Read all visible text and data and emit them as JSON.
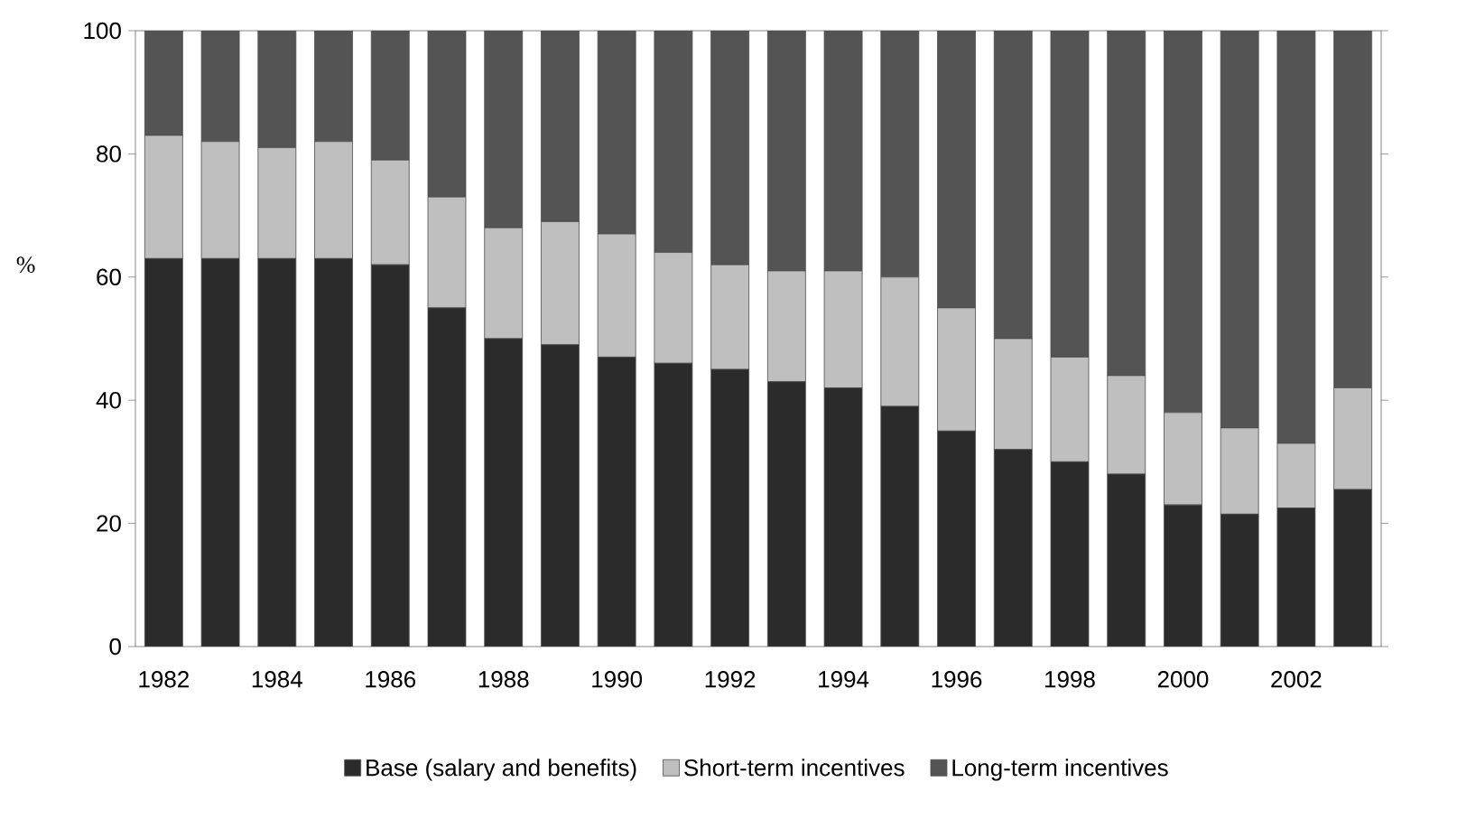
{
  "chart_data": {
    "type": "bar",
    "stacked": true,
    "ylabel": "%",
    "categories": [
      "1982",
      null,
      "1984",
      null,
      "1986",
      null,
      "1988",
      null,
      "1990",
      null,
      "1992",
      null,
      "1994",
      null,
      "1996",
      null,
      "1998",
      null,
      "2000",
      null,
      "2002",
      null
    ],
    "series": [
      {
        "name": "Base (salary and benefits)",
        "color": "#2b2b2b",
        "values": [
          63,
          63,
          63,
          63,
          62,
          55,
          50,
          49,
          47,
          46,
          45,
          43,
          42,
          39,
          35,
          32,
          30,
          28,
          23,
          21.5,
          22.5,
          25.5
        ]
      },
      {
        "name": "Short-term incentives",
        "color": "#bfbfbf",
        "values": [
          20,
          19,
          18,
          19,
          17,
          18,
          18,
          20,
          20,
          18,
          17,
          18,
          19,
          21,
          20,
          18,
          17,
          16,
          15,
          14,
          10.5,
          16.5
        ]
      },
      {
        "name": "Long-term incentives",
        "color": "#545454",
        "values": [
          17,
          18,
          19,
          18,
          21,
          27,
          32,
          31,
          33,
          36,
          38,
          39,
          39,
          40,
          45,
          50,
          53,
          56,
          62,
          64.5,
          67,
          58
        ]
      }
    ],
    "ylim": [
      0,
      100
    ],
    "yticks": [
      0,
      20,
      40,
      60,
      80,
      100
    ],
    "grid": false,
    "legend": "bottom"
  }
}
